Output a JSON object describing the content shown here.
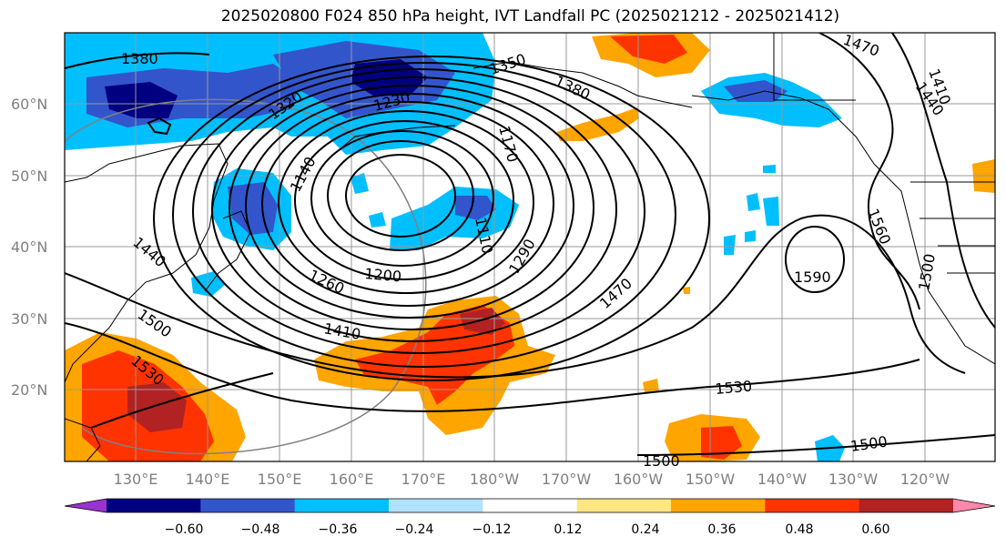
{
  "title": "2025020800 F024 850 hPa height, IVT Landfall PC (2025021212 - 2025021412)",
  "lat_labels": [
    "60°N",
    "50°N",
    "40°N",
    "30°N",
    "20°N"
  ],
  "lon_labels": [
    "130°E",
    "140°E",
    "150°E",
    "160°E",
    "170°E",
    "180°W",
    "170°W",
    "160°W",
    "150°W",
    "140°W",
    "130°W",
    "120°W"
  ],
  "contour_labels": [
    "1380",
    "1350",
    "1380",
    "1470",
    "1410",
    "1440",
    "1320",
    "1230",
    "1170",
    "1140",
    "1110",
    "1290",
    "1200",
    "1260",
    "1440",
    "1500",
    "1530",
    "1410",
    "1470",
    "1560",
    "1590",
    "1500",
    "1530",
    "1500",
    "1500"
  ],
  "colorbar": {
    "ticks": [
      "−0.60",
      "−0.48",
      "−0.36",
      "−0.24",
      "−0.12",
      "0.12",
      "0.24",
      "0.36",
      "0.48",
      "0.60"
    ],
    "colors": [
      "#9933cc",
      "#000080",
      "#3355cc",
      "#00bfff",
      "#b0e2ff",
      "#ffffff",
      "#ffe680",
      "#ffa500",
      "#ff3300",
      "#b22222",
      "#ff88aa"
    ]
  }
}
